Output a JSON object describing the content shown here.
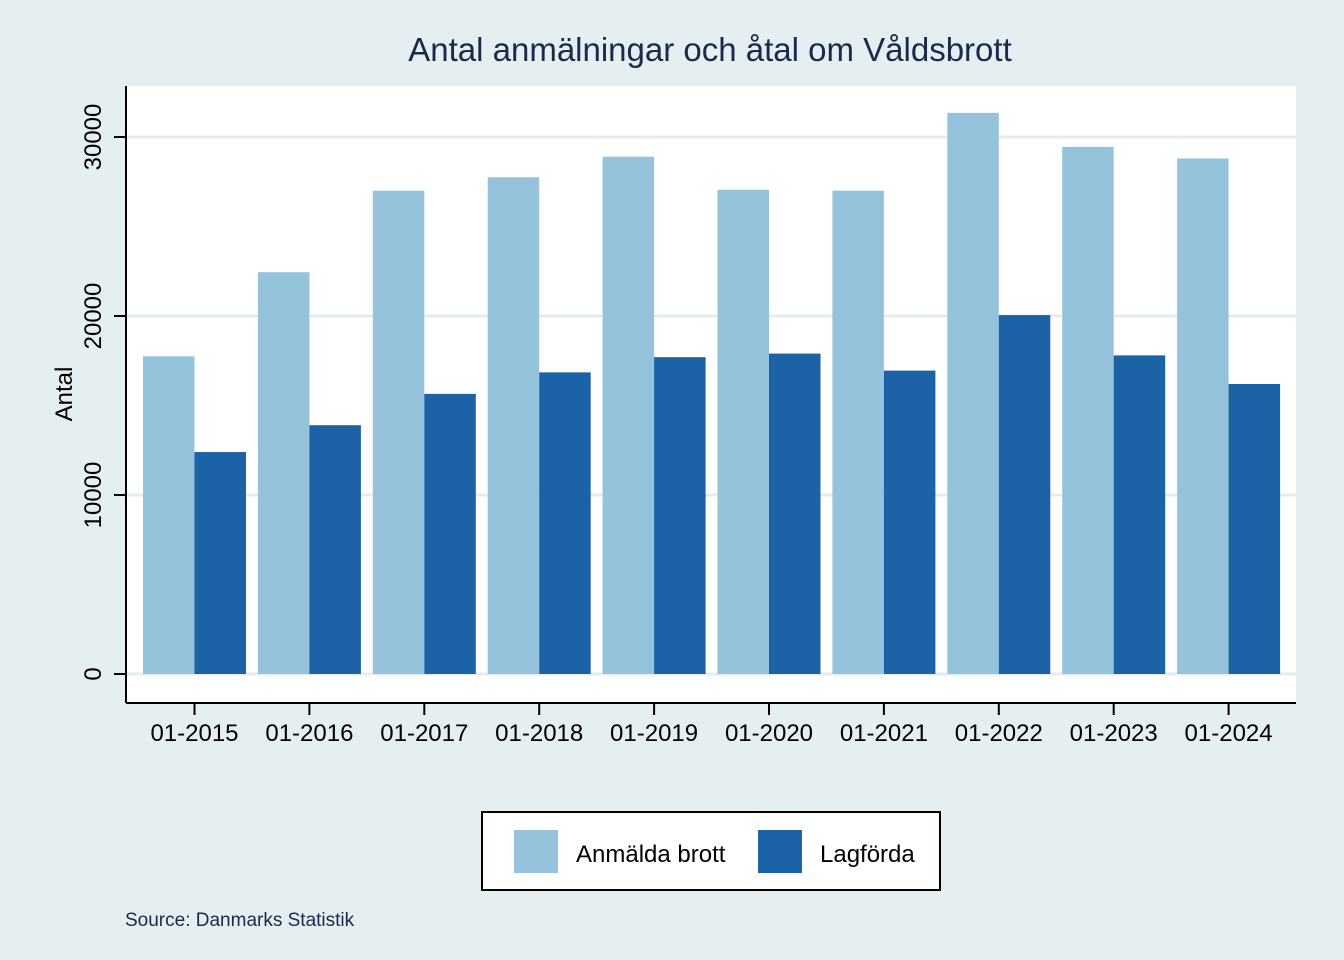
{
  "chart_data": {
    "type": "bar",
    "title": "Antal anmälningar och åtal om Våldsbrott",
    "xlabel": "",
    "ylabel": "Antal",
    "categories": [
      "01-2015",
      "01-2016",
      "01-2017",
      "01-2018",
      "01-2019",
      "01-2020",
      "01-2021",
      "01-2022",
      "01-2023",
      "01-2024"
    ],
    "series": [
      {
        "name": "Anmälda brott",
        "color": "#96c3dc",
        "values": [
          17750,
          22450,
          27000,
          27750,
          28900,
          27050,
          27000,
          31350,
          29450,
          28800
        ]
      },
      {
        "name": "Lagförda",
        "color": "#1c62a6",
        "values": [
          12400,
          13900,
          15650,
          16850,
          17700,
          17900,
          16950,
          20050,
          17800,
          16200
        ]
      }
    ],
    "yticks": [
      0,
      10000,
      20000,
      30000
    ],
    "ylim": [
      0,
      30000
    ],
    "grid": true,
    "legend_position": "bottom",
    "source": "Source: Danmarks Statistik"
  }
}
